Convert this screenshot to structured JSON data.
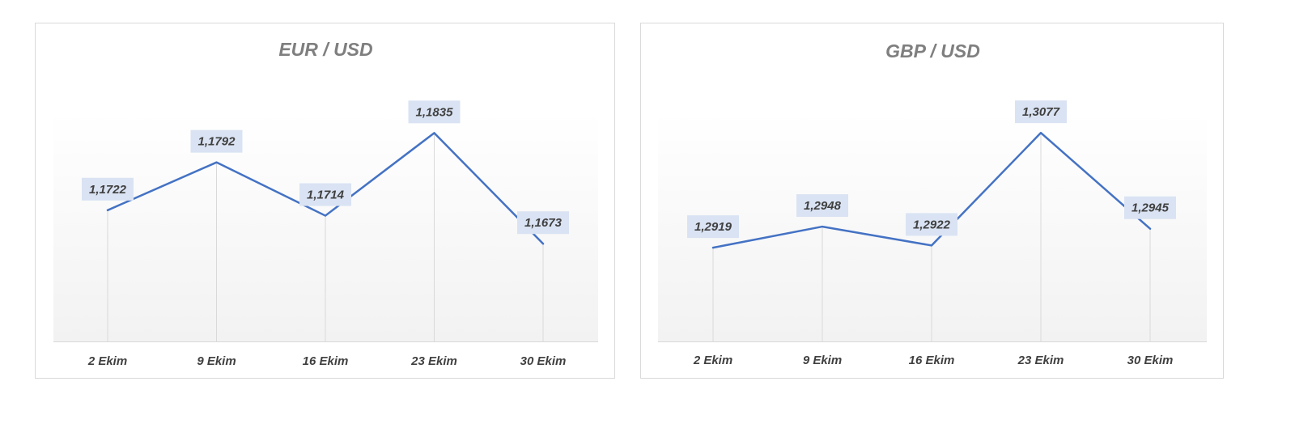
{
  "colors": {
    "line": "#4472c4",
    "label_bg": "#dae3f3",
    "plot_gradient_top": "#ffffff",
    "plot_gradient_bottom": "#f2f2f2",
    "drop_line": "#d9d9d9",
    "axis": "#d9d9d9"
  },
  "chart_data": [
    {
      "type": "line",
      "title": "EUR / USD",
      "categories": [
        "2 Ekim",
        "9 Ekim",
        "16 Ekim",
        "23 Ekim",
        "30 Ekim"
      ],
      "series": [
        {
          "values": [
            1.1722,
            1.1792,
            1.1714,
            1.1835,
            1.1673
          ],
          "data_labels": [
            "1,1722",
            "1,1792",
            "1,1714",
            "1,1835",
            "1,1673"
          ]
        }
      ],
      "ylim": [
        1.153,
        1.1865
      ],
      "grid": false,
      "legend": "none",
      "drop_lines": true
    },
    {
      "type": "line",
      "title": "GBP / USD",
      "categories": [
        "2 Ekim",
        "9 Ekim",
        "16 Ekim",
        "23 Ekim",
        "30 Ekim"
      ],
      "series": [
        {
          "values": [
            1.2919,
            1.2948,
            1.2922,
            1.3077,
            1.2945
          ],
          "data_labels": [
            "1,2919",
            "1,2948",
            "1,2922",
            "1,3077",
            "1,2945"
          ]
        }
      ],
      "ylim": [
        1.279,
        1.3105
      ],
      "grid": false,
      "legend": "none",
      "drop_lines": true
    }
  ]
}
